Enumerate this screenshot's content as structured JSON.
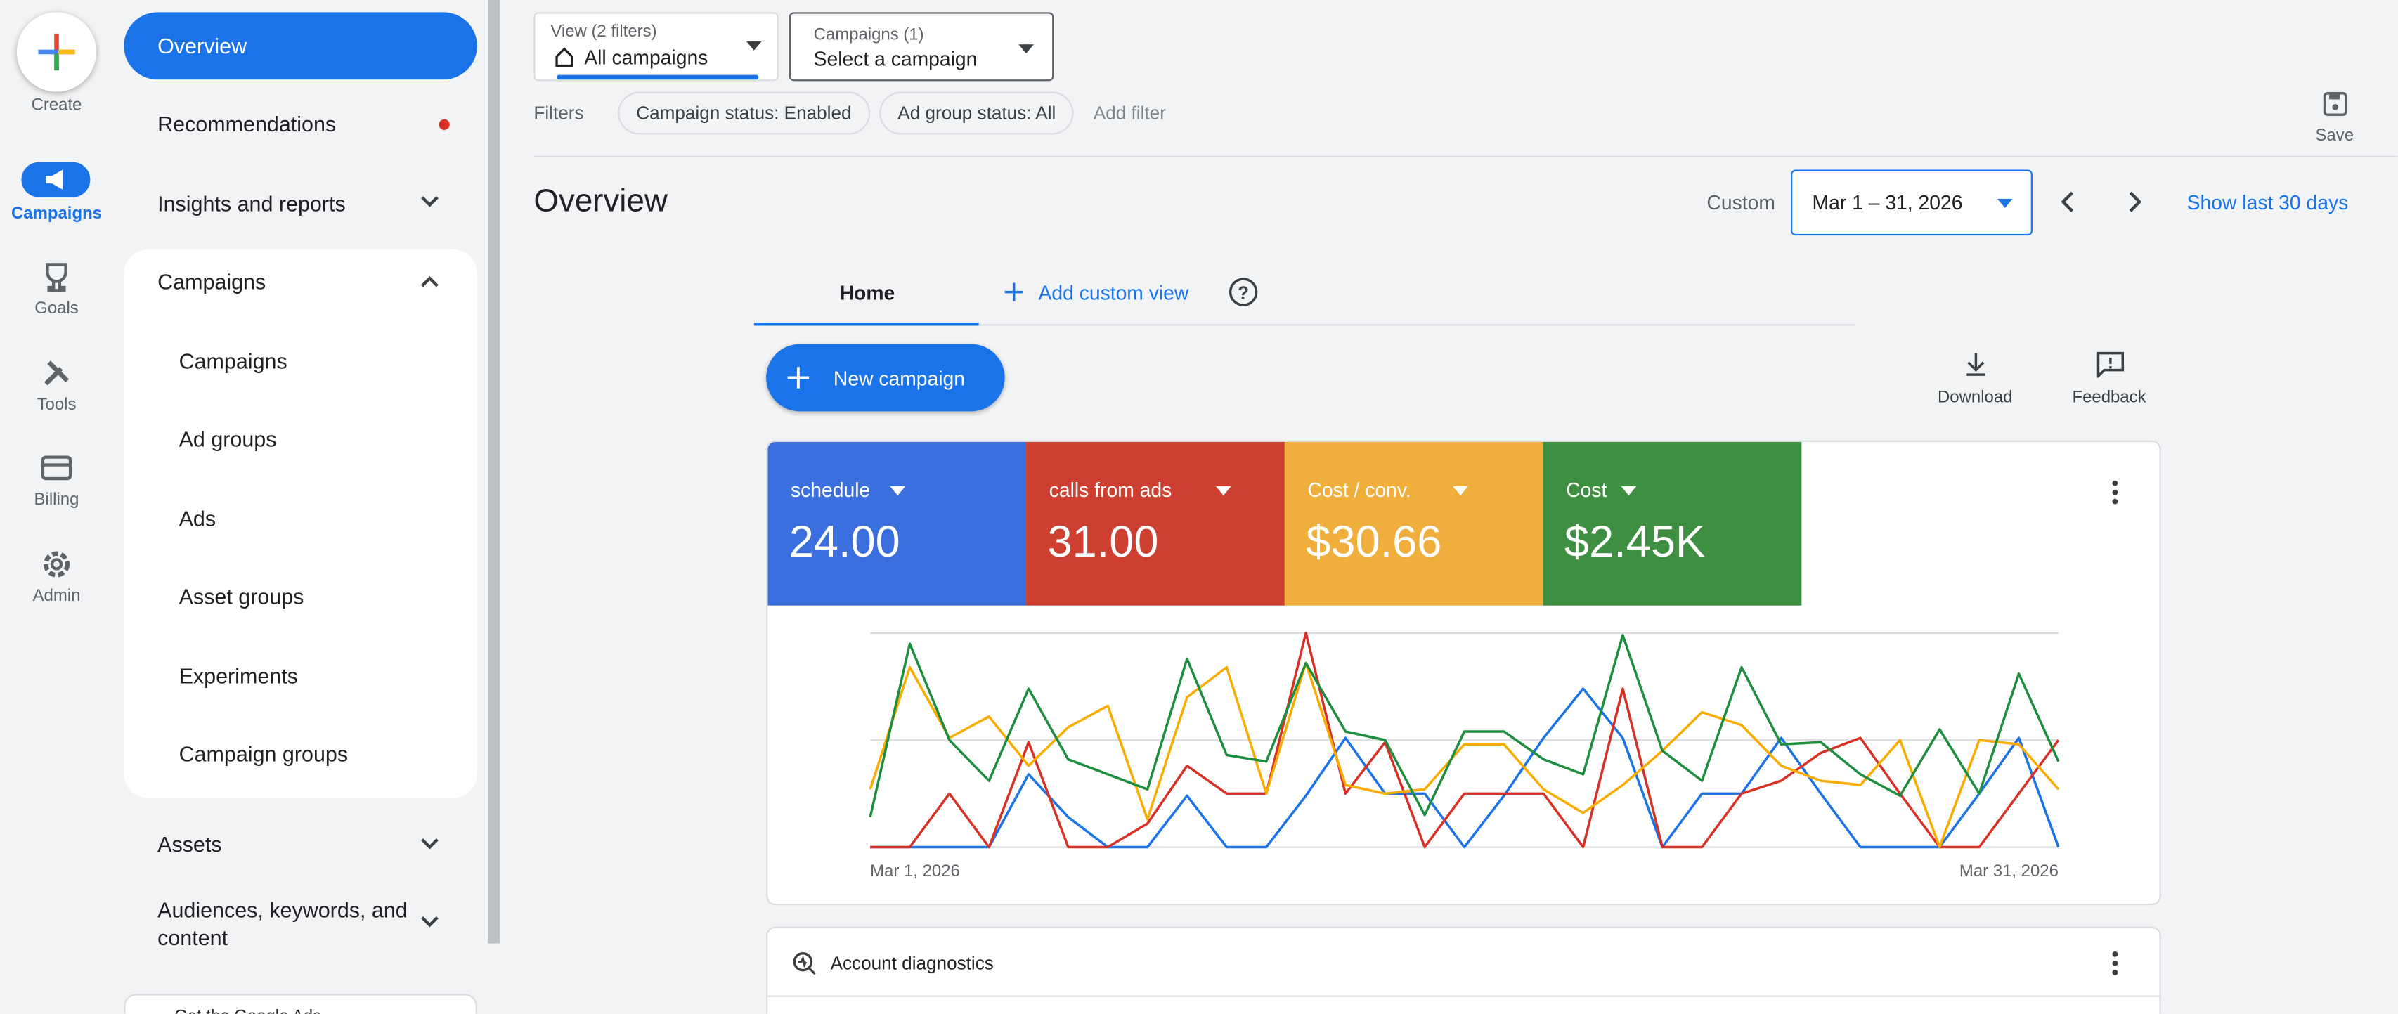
{
  "create": "Create",
  "rail": [
    "Campaigns",
    "Goals",
    "Tools",
    "Billing",
    "Admin"
  ],
  "nav": {
    "overview": "Overview",
    "recommendations": "Recommendations",
    "insights": "Insights and reports",
    "campaigns": "Campaigns",
    "campaign_items": [
      "Campaigns",
      "Ad groups",
      "Ads",
      "Asset groups",
      "Experiments",
      "Campaign groups"
    ],
    "assets": "Assets",
    "audiences": "Audiences, keywords, and content",
    "app_banner": "Get the Google Ads"
  },
  "view_filter": {
    "caption": "View (2 filters)",
    "value": "All campaigns"
  },
  "campaign_filter": {
    "caption": "Campaigns (1)",
    "value": "Select a campaign"
  },
  "filters": {
    "label": "Filters",
    "chips": [
      "Campaign status: Enabled",
      "Ad group status: All"
    ],
    "add": "Add filter"
  },
  "save": "Save",
  "page_title": "Overview",
  "date": {
    "label": "Custom",
    "range": "Mar 1 – 31, 2026",
    "shortcut": "Show last 30 days"
  },
  "tabs": {
    "home": "Home",
    "add": "Add custom view"
  },
  "new_campaign": "New campaign",
  "actions": [
    "Download",
    "Feedback"
  ],
  "scorecards": [
    {
      "name": "schedule",
      "value": "24.00",
      "color": "#3b6fde"
    },
    {
      "name": "calls from ads",
      "value": "31.00",
      "color": "#cc3f31"
    },
    {
      "name": "Cost / conv.",
      "value": "$30.66",
      "color": "#f0ae3c"
    },
    {
      "name": "Cost",
      "value": "$2.45K",
      "color": "#3f8f43"
    }
  ],
  "chart_data": {
    "type": "line",
    "categories": [
      "Mar 1, 2026",
      null,
      null,
      null,
      null,
      null,
      null,
      null,
      null,
      null,
      null,
      null,
      null,
      null,
      null,
      null,
      null,
      null,
      null,
      null,
      null,
      null,
      null,
      null,
      null,
      null,
      null,
      null,
      null,
      null,
      "Mar 31, 2026"
    ],
    "series": [
      {
        "color": "#1a73e8",
        "values": [
          0,
          0,
          0,
          0,
          34,
          14,
          0,
          0,
          24,
          0,
          0,
          24,
          51,
          25,
          25,
          0,
          24,
          51,
          74,
          51,
          0,
          25,
          25,
          51,
          25,
          0,
          0,
          0,
          25,
          51,
          0
        ]
      },
      {
        "color": "#d93025",
        "values": [
          0,
          0,
          25,
          0,
          49,
          0,
          0,
          11,
          38,
          25,
          25,
          100,
          25,
          49,
          0,
          25,
          25,
          25,
          0,
          74,
          0,
          0,
          25,
          31,
          44,
          51,
          25,
          0,
          0,
          25,
          50
        ]
      },
      {
        "color": "#f9ab00",
        "values": [
          27,
          84,
          51,
          61,
          38,
          56,
          66,
          13,
          70,
          84,
          25,
          86,
          29,
          25,
          27,
          48,
          48,
          27,
          16,
          29,
          45,
          63,
          57,
          38,
          31,
          29,
          50,
          0,
          50,
          48,
          27
        ]
      },
      {
        "color": "#1e8e3e",
        "values": [
          14,
          95,
          50,
          31,
          74,
          41,
          34,
          27,
          88,
          43,
          40,
          86,
          54,
          50,
          15,
          54,
          54,
          41,
          34,
          99,
          45,
          31,
          84,
          48,
          49,
          34,
          24,
          55,
          25,
          81,
          40
        ]
      }
    ],
    "ylim": [
      0,
      100
    ],
    "yticks": [
      0,
      50,
      100
    ],
    "grid": true
  },
  "diagnostics": "Account diagnostics"
}
